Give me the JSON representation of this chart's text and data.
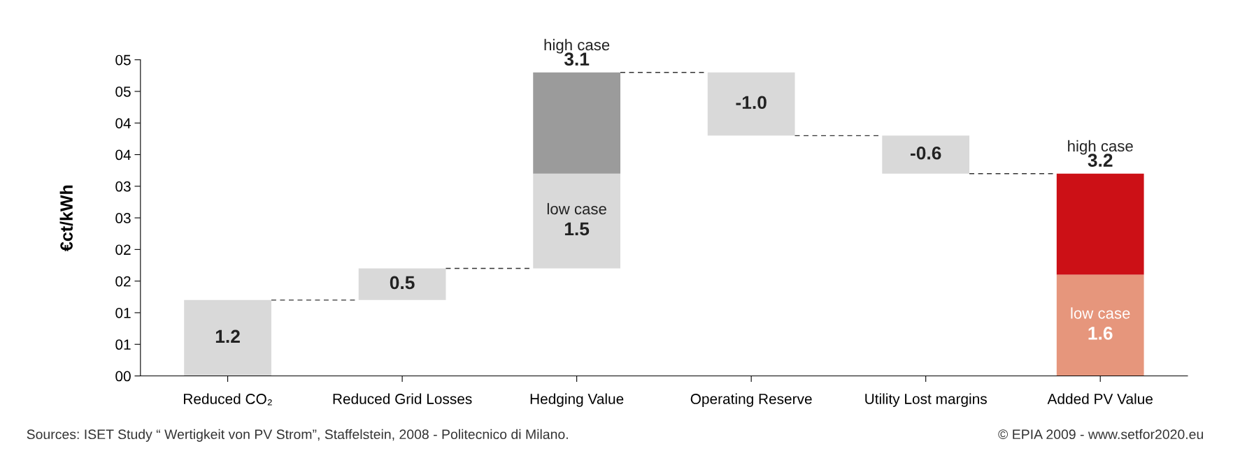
{
  "chart_data": {
    "type": "bar",
    "stacked": true,
    "ylabel": "€ct/kWh",
    "categories": [
      "Reduced CO₂",
      "Reduced Grid Losses",
      "Hedging Value",
      "Operating Reserve",
      "Utility Lost margins",
      "Added PV Value"
    ],
    "series": [
      {
        "colors": [
          "#d9d9d9",
          "#d9d9d9",
          "#d9d9d9",
          "#d9d9d9",
          "#d9d9d9",
          "#e6967c"
        ],
        "values": [
          1.2,
          0.5,
          1.5,
          -1.0,
          -0.6,
          1.6
        ],
        "base": [
          0,
          1.2,
          1.7,
          4.8,
          3.8,
          0
        ],
        "value_labels": [
          "1.2",
          "0.5",
          "1.5",
          "-1.0",
          "-0.6",
          "1.6"
        ]
      },
      {
        "colors": [
          null,
          null,
          "#9b9b9b",
          null,
          null,
          "#cc1016"
        ],
        "values": [
          null,
          null,
          1.6,
          null,
          null,
          1.6
        ],
        "base": [
          null,
          null,
          3.2,
          null,
          null,
          1.6
        ]
      }
    ],
    "totals": [
      null,
      null,
      "3.1",
      null,
      null,
      "3.2"
    ],
    "ylim": [
      0,
      5.0
    ],
    "yticks": [
      {
        "value": 0,
        "label": "00"
      },
      {
        "value": 0.5,
        "label": "01"
      },
      {
        "value": 1.0,
        "label": "01"
      },
      {
        "value": 1.5,
        "label": "02"
      },
      {
        "value": 2.0,
        "label": "02"
      },
      {
        "value": 2.5,
        "label": "03"
      },
      {
        "value": 3.0,
        "label": "03"
      },
      {
        "value": 3.5,
        "label": "04"
      },
      {
        "value": 4.0,
        "label": "04"
      },
      {
        "value": 4.5,
        "label": "05"
      },
      {
        "value": 5.0,
        "label": "05"
      }
    ],
    "grid": false,
    "legend": false,
    "ref_lines": [
      {
        "axis": "y",
        "value": 1.2,
        "line_style": "dashed",
        "color": "#333333"
      },
      {
        "axis": "y",
        "value": 1.7,
        "line_style": "dashed",
        "color": "#333333"
      },
      {
        "axis": "y",
        "value": 4.8,
        "line_style": "dashed",
        "color": "#333333"
      },
      {
        "axis": "y",
        "value": 3.8,
        "line_style": "dashed",
        "color": "#333333"
      },
      {
        "axis": "y",
        "value": 3.2,
        "line_style": "dashed",
        "color": "#333333"
      }
    ],
    "annotations": [
      {
        "text": "high case",
        "x": "Hedging Value",
        "y": 4.8
      },
      {
        "text": "low case",
        "x": "Hedging Value",
        "y": 3.2
      },
      {
        "text": "high case",
        "x": "Added PV Value",
        "y": 3.2
      },
      {
        "text": "low case",
        "x": "Added PV Value",
        "y": 1.6
      },
      "Sources: ISET Study “ Wertigkeit von PV Strom”, Staffelstein, 2008 - Politecnico di Milano.",
      "© EPIA 2009 - www.setfor2020.eu"
    ]
  }
}
